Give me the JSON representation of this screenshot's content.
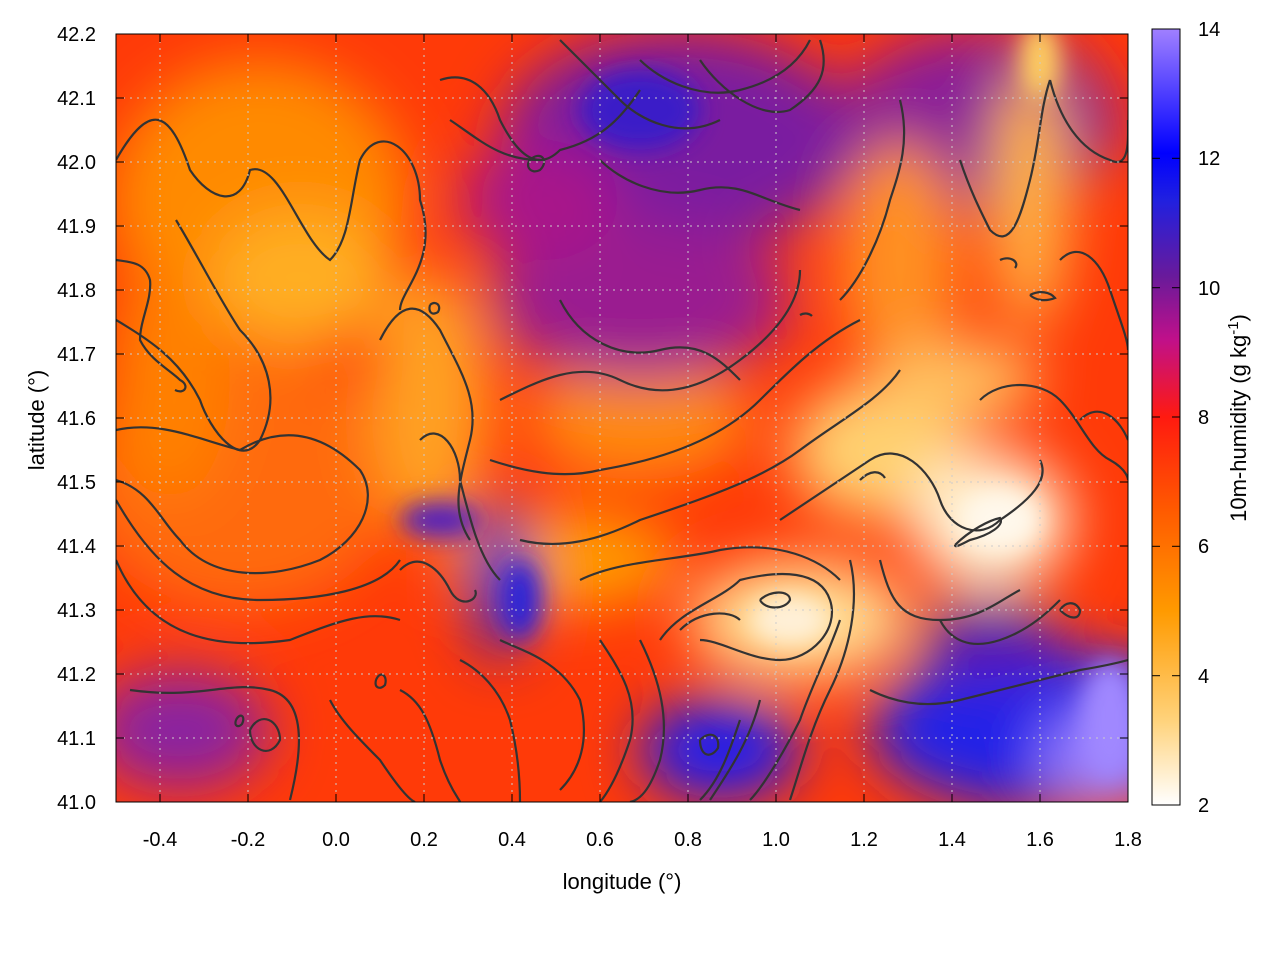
{
  "chart_data": {
    "type": "heatmap",
    "title": "",
    "xlabel": "longitude (°)",
    "ylabel": "latitude (°)",
    "colorbar_label": "10m-humidity (g kg",
    "colorbar_label_superscript": "-1",
    "colorbar_label_close": ")",
    "xlim": [
      -0.5,
      1.8
    ],
    "ylim": [
      41.0,
      42.2
    ],
    "clim": [
      2,
      14
    ],
    "x_ticks": [
      "-0.4",
      "-0.2",
      "0.0",
      "0.2",
      "0.4",
      "0.6",
      "0.8",
      "1.0",
      "1.2",
      "1.4",
      "1.6",
      "1.8"
    ],
    "y_ticks": [
      "41.0",
      "41.1",
      "41.2",
      "41.3",
      "41.4",
      "41.5",
      "41.6",
      "41.7",
      "41.8",
      "41.9",
      "42.0",
      "42.1",
      "42.2"
    ],
    "colorbar_ticks": [
      "2",
      "4",
      "6",
      "8",
      "10",
      "12",
      "14"
    ],
    "colormap": [
      "#ffffff",
      "#ffd27a",
      "#ff9a00",
      "#ff5a00",
      "#ff1a10",
      "#c0108a",
      "#6a1a9a",
      "#2020e0",
      "#0000ff",
      "#a080ff"
    ],
    "grid": true,
    "contours": true,
    "contour_color": "#333333",
    "humidity_regions": [
      {
        "lon": 0.0,
        "lat": 41.75,
        "value": 5.2
      },
      {
        "lon": -0.3,
        "lat": 41.3,
        "value": 6.5
      },
      {
        "lon": 0.7,
        "lat": 41.9,
        "value": 9.5
      },
      {
        "lon": 1.0,
        "lat": 41.3,
        "value": 3.0
      },
      {
        "lon": 1.5,
        "lat": 41.45,
        "value": 2.8
      },
      {
        "lon": 1.6,
        "lat": 41.1,
        "value": 12.0
      },
      {
        "lon": 0.8,
        "lat": 41.05,
        "value": 11.5
      },
      {
        "lon": 1.7,
        "lat": 42.15,
        "value": 4.5
      }
    ]
  }
}
